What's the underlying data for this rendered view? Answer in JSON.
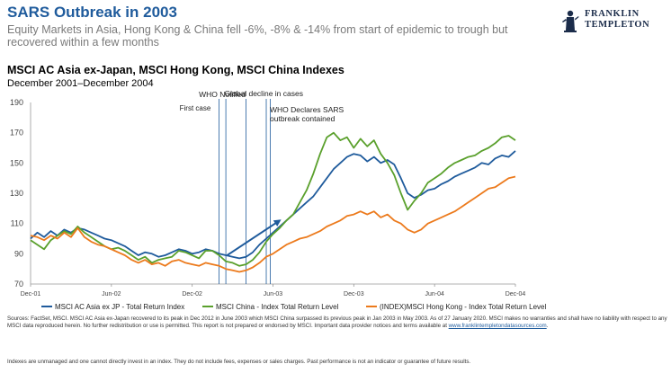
{
  "header": {
    "title": "SARS Outbreak in 2003",
    "subtitle": "Equity Markets in Asia, Hong Kong & China fell -6%, -8% & -14% from start of epidemic to trough but recovered within a few months"
  },
  "logo": {
    "line1": "FRANKLIN",
    "line2": "TEMPLETON"
  },
  "chart_data": {
    "type": "line",
    "title": "MSCI AC Asia ex-Japan, MSCI Hong Kong, MSCI China Indexes",
    "subtitle": "December 2001–December 2004",
    "xlabel": "",
    "ylabel": "",
    "ylim": [
      70,
      190
    ],
    "yticks": [
      70,
      90,
      110,
      130,
      150,
      170,
      190
    ],
    "x_tick_labels": [
      {
        "t": 0,
        "label": "Dec-01"
      },
      {
        "t": 6,
        "label": "Jun-02"
      },
      {
        "t": 12,
        "label": "Dec-02"
      },
      {
        "t": 18,
        "label": "Jun-03"
      },
      {
        "t": 24,
        "label": "Dec-03"
      },
      {
        "t": 30,
        "label": "Jun-04"
      },
      {
        "t": 36,
        "label": "Dec-04"
      }
    ],
    "x_unit": "months since Dec 2001",
    "events": [
      {
        "t": 14.0,
        "label": "First case"
      },
      {
        "t": 14.5,
        "label": "WHO Notified"
      },
      {
        "t": 16.0,
        "label": "Global decline in cases"
      },
      {
        "t": 17.5,
        "label": "WHO Declares SARS outbreak contained"
      },
      {
        "t": 17.8,
        "label": ""
      }
    ],
    "arrow": {
      "from": [
        14.6,
        89
      ],
      "to": [
        18.5,
        112
      ]
    },
    "series": [
      {
        "name": "MSCI AC Asia ex JP - Total Return Index",
        "color": "#1f5b9c",
        "t": [
          0,
          0.5,
          1,
          1.5,
          2,
          2.5,
          3,
          3.5,
          4,
          4.5,
          5,
          5.5,
          6,
          6.5,
          7,
          7.5,
          8,
          8.5,
          9,
          9.5,
          10,
          10.5,
          11,
          11.5,
          12,
          12.5,
          13,
          13.5,
          14,
          14.5,
          15,
          15.5,
          16,
          16.5,
          17,
          17.5,
          18,
          18.5,
          19,
          19.5,
          20,
          20.5,
          21,
          21.5,
          22,
          22.5,
          23,
          23.5,
          24,
          24.5,
          25,
          25.5,
          26,
          26.5,
          27,
          27.5,
          28,
          28.5,
          29,
          29.5,
          30,
          30.5,
          31,
          31.5,
          32,
          32.5,
          33,
          33.5,
          34,
          34.5,
          35,
          35.5,
          36
        ],
        "y": [
          100,
          104,
          101,
          105,
          102,
          106,
          104,
          107,
          106,
          104,
          102,
          100,
          99,
          97,
          95,
          92,
          89,
          91,
          90,
          88,
          89,
          91,
          93,
          92,
          90,
          91,
          93,
          92,
          90,
          89,
          88,
          87,
          88,
          91,
          96,
          100,
          104,
          108,
          112,
          116,
          120,
          124,
          128,
          134,
          140,
          146,
          150,
          154,
          156,
          155,
          151,
          154,
          150,
          152,
          149,
          140,
          130,
          127,
          129,
          132,
          133,
          136,
          138,
          141,
          143,
          145,
          147,
          150,
          149,
          153,
          155,
          154,
          158
        ]
      },
      {
        "name": "MSCI China - Index Total Return Level",
        "color": "#5aa02c",
        "t": [
          0,
          0.5,
          1,
          1.5,
          2,
          2.5,
          3,
          3.5,
          4,
          4.5,
          5,
          5.5,
          6,
          6.5,
          7,
          7.5,
          8,
          8.5,
          9,
          9.5,
          10,
          10.5,
          11,
          11.5,
          12,
          12.5,
          13,
          13.5,
          14,
          14.5,
          15,
          15.5,
          16,
          16.5,
          17,
          17.5,
          18,
          18.5,
          19,
          19.5,
          20,
          20.5,
          21,
          21.5,
          22,
          22.5,
          23,
          23.5,
          24,
          24.5,
          25,
          25.5,
          26,
          26.5,
          27,
          27.5,
          28,
          28.5,
          29,
          29.5,
          30,
          30.5,
          31,
          31.5,
          32,
          32.5,
          33,
          33.5,
          34,
          34.5,
          35,
          35.5,
          36
        ],
        "y": [
          99,
          96,
          93,
          99,
          102,
          105,
          103,
          108,
          104,
          101,
          98,
          95,
          93,
          94,
          92,
          89,
          86,
          88,
          84,
          86,
          87,
          88,
          92,
          91,
          89,
          87,
          92,
          92,
          89,
          85,
          84,
          82,
          83,
          86,
          91,
          98,
          103,
          107,
          112,
          116,
          124,
          132,
          143,
          156,
          167,
          170,
          165,
          167,
          160,
          166,
          161,
          165,
          156,
          150,
          142,
          130,
          119,
          125,
          130,
          137,
          140,
          143,
          147,
          150,
          152,
          154,
          155,
          158,
          160,
          163,
          167,
          168,
          165
        ]
      },
      {
        "name": "(INDEX)MSCI Hong Kong - Index Total Return Level",
        "color": "#ec7a1c",
        "t": [
          0,
          0.5,
          1,
          1.5,
          2,
          2.5,
          3,
          3.5,
          4,
          4.5,
          5,
          5.5,
          6,
          6.5,
          7,
          7.5,
          8,
          8.5,
          9,
          9.5,
          10,
          10.5,
          11,
          11.5,
          12,
          12.5,
          13,
          13.5,
          14,
          14.5,
          15,
          15.5,
          16,
          16.5,
          17,
          17.5,
          18,
          18.5,
          19,
          19.5,
          20,
          20.5,
          21,
          21.5,
          22,
          22.5,
          23,
          23.5,
          24,
          24.5,
          25,
          25.5,
          26,
          26.5,
          27,
          27.5,
          28,
          28.5,
          29,
          29.5,
          30,
          30.5,
          31,
          31.5,
          32,
          32.5,
          33,
          33.5,
          34,
          34.5,
          35,
          35.5,
          36
        ],
        "y": [
          102,
          101,
          99,
          102,
          100,
          104,
          101,
          107,
          101,
          98,
          96,
          95,
          93,
          91,
          89,
          86,
          84,
          86,
          83,
          84,
          82,
          85,
          86,
          84,
          83,
          82,
          84,
          83,
          82,
          80,
          79,
          78,
          79,
          81,
          84,
          88,
          90,
          93,
          96,
          98,
          100,
          101,
          103,
          105,
          108,
          110,
          112,
          115,
          116,
          118,
          116,
          118,
          114,
          116,
          112,
          110,
          106,
          104,
          106,
          110,
          112,
          114,
          116,
          118,
          121,
          124,
          127,
          130,
          133,
          134,
          137,
          140,
          141
        ]
      }
    ]
  },
  "footer": {
    "sources_text": "Sources: FactSet, MSCI. MSCI AC Asia ex-Japan recovered to its peak in Dec 2012 in June 2003 which MSCI  China surpassed its previous peak in Jan 2003 in May 2003. As of 27 January 2020. MSCI makes no warranties and shall have no liability with respect to any MSCI data reproduced herein. No further redistribution or use is permitted. This report is not prepared or endorsed by MSCI. Important data provider notices and terms available at ",
    "sources_link": "www.franklintempletondatasources.com",
    "sources_end": ".",
    "disclaimer": "Indexes are unmanaged and one cannot directly invest in an index. They do not include fees, expenses or sales charges. Past performance is not an indicator or guarantee of future results."
  }
}
